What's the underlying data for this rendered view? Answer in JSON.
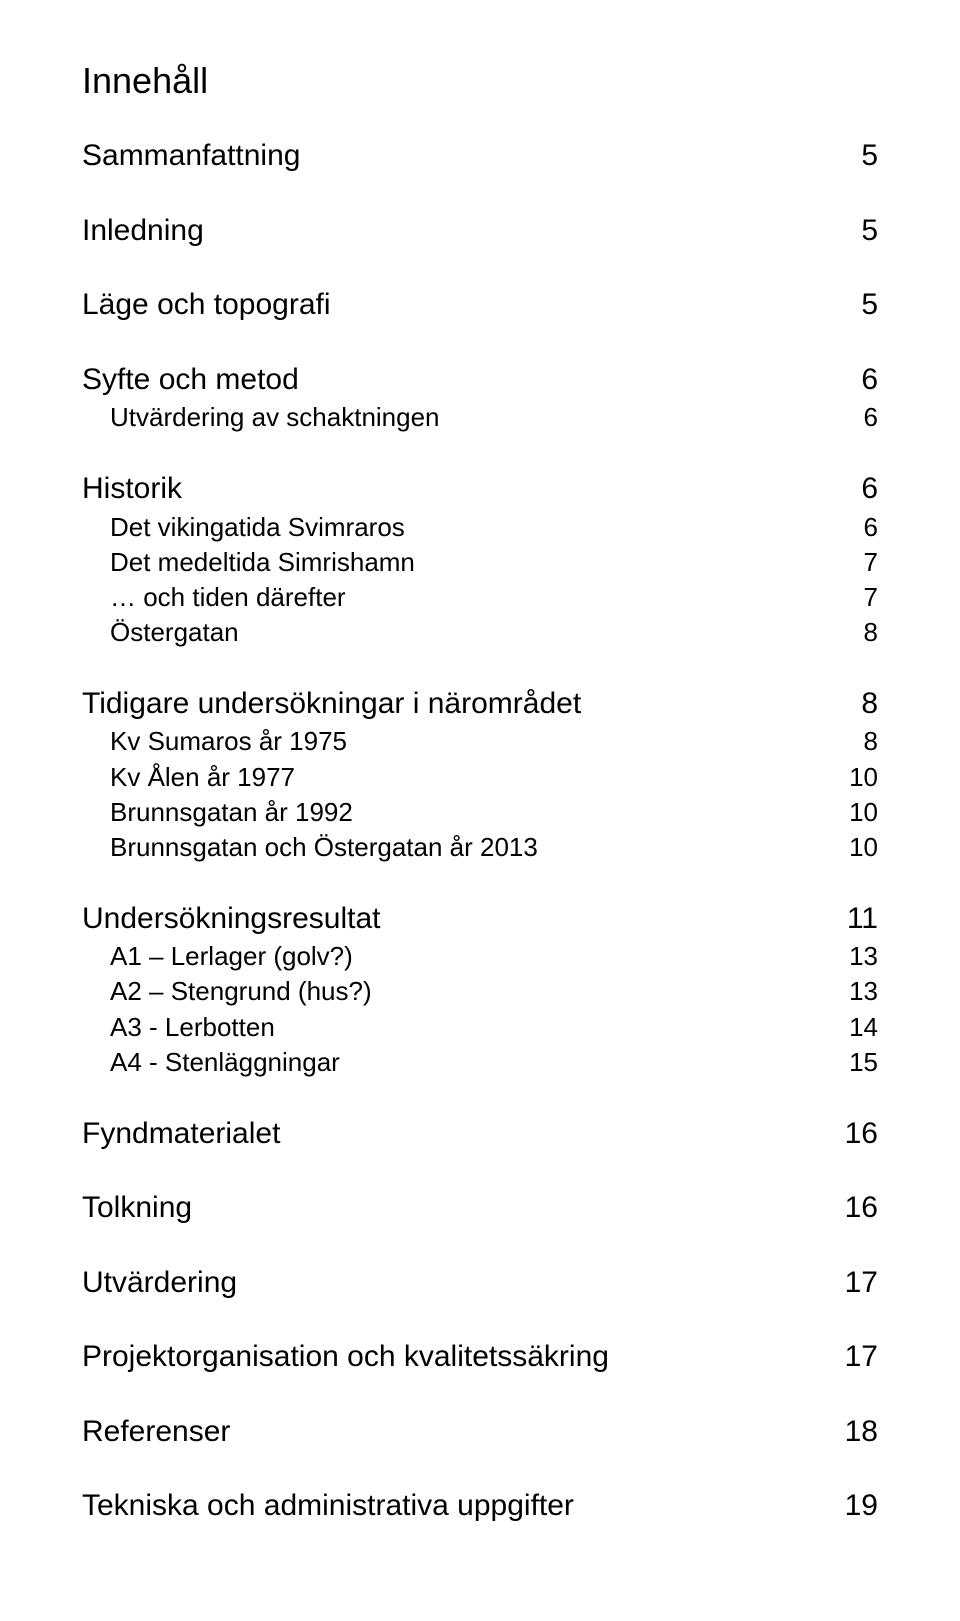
{
  "title": "Innehåll",
  "title_fontsize": 36,
  "section_heading_fontsize": 30,
  "sub_fontsize": 26,
  "text_color": "#000000",
  "background_color": "#ffffff",
  "font_family": "Arial",
  "sections": [
    {
      "rows": [
        {
          "label": "Sammanfattning",
          "page": "5",
          "level": 0
        }
      ]
    },
    {
      "rows": [
        {
          "label": "Inledning",
          "page": "5",
          "level": 0
        }
      ]
    },
    {
      "rows": [
        {
          "label": "Läge och topografi",
          "page": "5",
          "level": 0
        }
      ]
    },
    {
      "rows": [
        {
          "label": "Syfte och metod",
          "page": "6",
          "level": 0
        },
        {
          "label": "Utvärdering av schaktningen",
          "page": "6",
          "level": 1
        }
      ]
    },
    {
      "rows": [
        {
          "label": "Historik",
          "page": "6",
          "level": 0
        },
        {
          "label": "Det vikingatida Svimraros",
          "page": "6",
          "level": 1
        },
        {
          "label": "Det medeltida Simrishamn",
          "page": "7",
          "level": 1
        },
        {
          "label": "… och tiden därefter",
          "page": "7",
          "level": 1
        },
        {
          "label": "Östergatan",
          "page": "8",
          "level": 1
        }
      ]
    },
    {
      "rows": [
        {
          "label": "Tidigare undersökningar i närområdet",
          "page": "8",
          "level": 0
        },
        {
          "label": "Kv Sumaros år 1975",
          "page": "8",
          "level": 1
        },
        {
          "label": "Kv Ålen år 1977",
          "page": "10",
          "level": 1
        },
        {
          "label": "Brunnsgatan år 1992",
          "page": "10",
          "level": 1
        },
        {
          "label": "Brunnsgatan och Östergatan år 2013",
          "page": "10",
          "level": 1
        }
      ]
    },
    {
      "rows": [
        {
          "label": "Undersökningsresultat",
          "page": "11",
          "level": 0
        },
        {
          "label": "A1 – Lerlager (golv?)",
          "page": "13",
          "level": 1
        },
        {
          "label": "A2 – Stengrund (hus?)",
          "page": "13",
          "level": 1
        },
        {
          "label": "A3 - Lerbotten",
          "page": "14",
          "level": 1
        },
        {
          "label": "A4 - Stenläggningar",
          "page": "15",
          "level": 1
        }
      ]
    },
    {
      "rows": [
        {
          "label": "Fyndmaterialet",
          "page": "16",
          "level": 0
        }
      ]
    },
    {
      "rows": [
        {
          "label": "Tolkning",
          "page": "16",
          "level": 0
        }
      ]
    },
    {
      "rows": [
        {
          "label": "Utvärdering",
          "page": "17",
          "level": 0
        }
      ]
    },
    {
      "rows": [
        {
          "label": "Projektorganisation och kvalitetssäkring",
          "page": "17",
          "level": 0
        }
      ]
    },
    {
      "rows": [
        {
          "label": "Referenser",
          "page": "18",
          "level": 0
        }
      ]
    },
    {
      "rows": [
        {
          "label": "Tekniska och administrativa uppgifter",
          "page": "19",
          "level": 0
        }
      ]
    }
  ]
}
